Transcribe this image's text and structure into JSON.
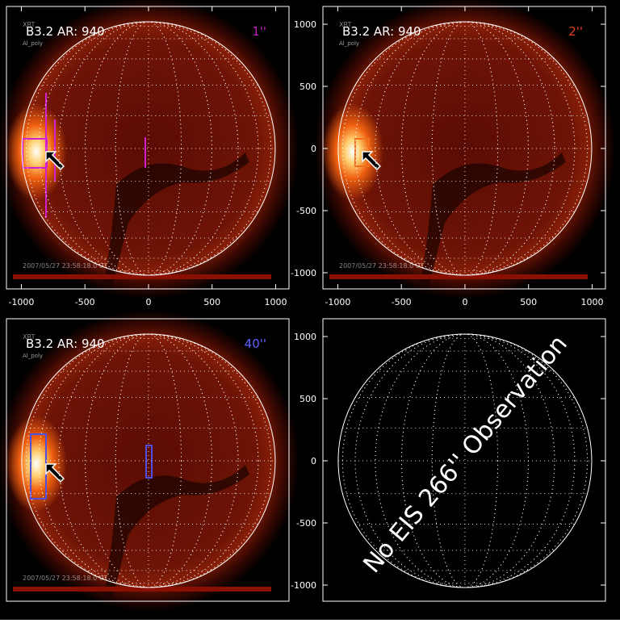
{
  "panels": [
    {
      "instrument": "XRT",
      "filter": "Al_poly",
      "title": "B3.2 AR:  940",
      "resolution": "1''",
      "label_color": "#c020c0",
      "overlay": "#d020d0",
      "timestamp": "2007/05/27 23:58:18.0 UT",
      "image": true,
      "xlim": [
        -1117,
        1105
      ],
      "ylim": [
        -1130,
        1143
      ],
      "xticks": [
        -1000,
        -500,
        0,
        500,
        1000
      ]
    },
    {
      "instrument": "XRT",
      "filter": "Al_poly",
      "title": "B3.2 AR:  940",
      "resolution": "2''",
      "label_color": "#e04020",
      "overlay": "#f07020",
      "timestamp": "2007/05/27 23:58:18.0 UT",
      "image": true,
      "xlim": [
        -1117,
        1105
      ],
      "ylim": [
        -1130,
        1143
      ],
      "xticks": [
        -1000,
        -500,
        0,
        500,
        1000
      ],
      "yticks": [
        1000,
        500,
        0,
        -500,
        -1000
      ]
    },
    {
      "instrument": "XRT",
      "filter": "Al_poly",
      "title": "B3.2 AR:  940",
      "resolution": "40''",
      "label_color": "#6060ff",
      "overlay": "#5050e0",
      "timestamp": "2007/05/27 23:58:18.0 UT",
      "image": true,
      "xlim": [
        -1117,
        1105
      ],
      "ylim": [
        -1130,
        1143
      ]
    },
    {
      "annotation": "No EIS 266'' Observation",
      "image": false,
      "xlim": [
        -1117,
        1105
      ],
      "ylim": [
        -1130,
        1143
      ],
      "yticks": [
        1000,
        500,
        0,
        -500,
        -1000
      ]
    }
  ]
}
